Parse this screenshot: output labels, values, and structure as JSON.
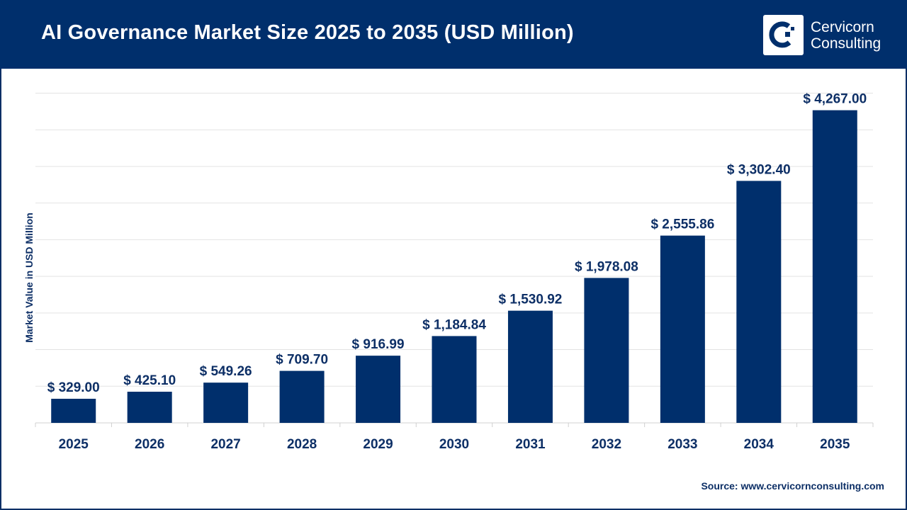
{
  "header": {
    "title": "AI Governance Market Size 2025 to 2035 (USD Million)",
    "brand_line1": "Cervicorn",
    "brand_line2": "Consulting"
  },
  "source": "Source: www.cervicornconsulting.com",
  "colors": {
    "bar": "#002f6c",
    "header": "#002f6c",
    "text": "#0d2f66",
    "grid": "#e3e3e3"
  },
  "chart_data": {
    "type": "bar",
    "title": "AI Governance Market Size 2025 to 2035 (USD Million)",
    "xlabel": "",
    "ylabel": "Market Value in USD Million",
    "categories": [
      "2025",
      "2026",
      "2027",
      "2028",
      "2029",
      "2030",
      "2031",
      "2032",
      "2033",
      "2034",
      "2035"
    ],
    "values": [
      329.0,
      425.1,
      549.26,
      709.7,
      916.99,
      1184.84,
      1530.92,
      1978.08,
      2555.86,
      3302.4,
      4267.0
    ],
    "data_labels": [
      "$ 329.00",
      "$ 425.10",
      "$ 549.26",
      "$ 709.70",
      "$ 916.99",
      "$ 1,184.84",
      "$ 1,530.92",
      "$ 1,978.08",
      "$ 2,555.86",
      "$ 3,302.40",
      "$ 4,267.00"
    ],
    "ylim": [
      0,
      4500
    ],
    "ytick_step": 500,
    "ytick_labels_shown": false,
    "grid": true,
    "legend": "none"
  }
}
